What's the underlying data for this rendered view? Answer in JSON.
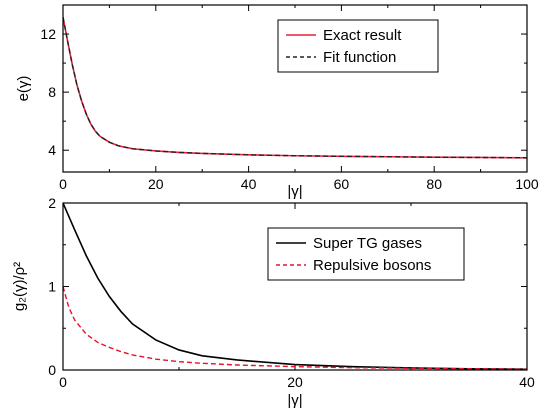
{
  "chart_data": [
    {
      "type": "line",
      "ylabel": "e(γ)",
      "xlabel": "|γ|",
      "xlim": [
        0,
        100
      ],
      "ylim": [
        2.5,
        14
      ],
      "xticks": [
        0,
        20,
        40,
        60,
        80,
        100
      ],
      "yticks": [
        4,
        8,
        12
      ],
      "legend_position": "top-right",
      "series": [
        {
          "name": "Exact result",
          "color": "#e8213a",
          "dash": "solid",
          "x": [
            0,
            1,
            2,
            3,
            4,
            5,
            6,
            7,
            8,
            10,
            12,
            15,
            20,
            25,
            30,
            40,
            50,
            60,
            70,
            80,
            90,
            100
          ],
          "y": [
            13.16,
            11.5,
            9.9,
            8.5,
            7.4,
            6.5,
            5.8,
            5.3,
            4.95,
            4.55,
            4.3,
            4.1,
            3.95,
            3.85,
            3.78,
            3.68,
            3.62,
            3.58,
            3.55,
            3.52,
            3.5,
            3.48
          ]
        },
        {
          "name": "Fit function",
          "color": "#222222",
          "dash": "dashed",
          "x": [
            0,
            1,
            2,
            3,
            4,
            5,
            6,
            7,
            8,
            10,
            12,
            15,
            20,
            25,
            30,
            40,
            50,
            60,
            70,
            80,
            90,
            100
          ],
          "y": [
            13.16,
            11.5,
            9.9,
            8.5,
            7.4,
            6.5,
            5.8,
            5.3,
            4.95,
            4.55,
            4.3,
            4.1,
            3.95,
            3.85,
            3.78,
            3.68,
            3.62,
            3.58,
            3.55,
            3.52,
            3.5,
            3.48
          ]
        }
      ]
    },
    {
      "type": "line",
      "ylabel": "g₂(γ)/ρ²",
      "xlabel": "|γ|",
      "xlim": [
        0,
        40
      ],
      "ylim": [
        0,
        2
      ],
      "xticks": [
        0,
        20,
        40
      ],
      "yticks": [
        0,
        1,
        2
      ],
      "legend_position": "top-right",
      "series": [
        {
          "name": "Super TG gases",
          "color": "#000000",
          "dash": "solid",
          "x": [
            0,
            1,
            2,
            3,
            4,
            5,
            6,
            8,
            10,
            12,
            15,
            20,
            25,
            30,
            35,
            40
          ],
          "y": [
            2.0,
            1.68,
            1.37,
            1.1,
            0.88,
            0.7,
            0.55,
            0.36,
            0.24,
            0.17,
            0.12,
            0.065,
            0.04,
            0.025,
            0.015,
            0.01
          ]
        },
        {
          "name": "Repulsive bosons",
          "color": "#e8102a",
          "dash": "dashed",
          "x": [
            0,
            0.5,
            1,
            2,
            3,
            4,
            5,
            6,
            8,
            10,
            12,
            15,
            20,
            25,
            30,
            35,
            40
          ],
          "y": [
            1.0,
            0.75,
            0.6,
            0.43,
            0.33,
            0.27,
            0.22,
            0.18,
            0.13,
            0.1,
            0.08,
            0.06,
            0.04,
            0.028,
            0.02,
            0.015,
            0.01
          ]
        }
      ]
    }
  ]
}
